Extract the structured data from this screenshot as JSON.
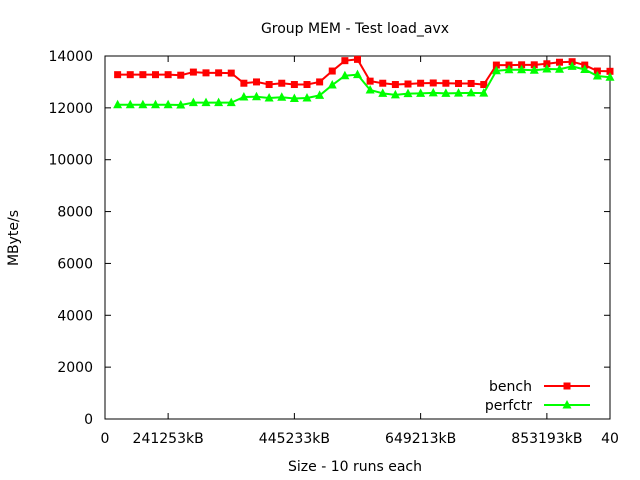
{
  "chart_data": {
    "type": "line",
    "title": "Group MEM - Test load_avx",
    "xlabel": "Size - 10 runs each",
    "ylabel": "MByte/s",
    "xlim": [
      0,
      40
    ],
    "ylim": [
      0,
      14000
    ],
    "x_ticks": [
      {
        "value": 0,
        "label": "0"
      },
      {
        "value": 5,
        "label": "241253kB"
      },
      {
        "value": 15,
        "label": "445233kB"
      },
      {
        "value": 25,
        "label": "649213kB"
      },
      {
        "value": 35,
        "label": "853193kB"
      },
      {
        "value": 40,
        "label": "40"
      }
    ],
    "y_ticks": [
      0,
      2000,
      4000,
      6000,
      8000,
      10000,
      12000,
      14000
    ],
    "grid": false,
    "legend_position": "bottom-right",
    "x": [
      1,
      2,
      3,
      4,
      5,
      6,
      7,
      8,
      9,
      10,
      11,
      12,
      13,
      14,
      15,
      16,
      17,
      18,
      19,
      20,
      21,
      22,
      23,
      24,
      25,
      26,
      27,
      28,
      29,
      30,
      31,
      32,
      33,
      34,
      35,
      36,
      37,
      38,
      39,
      40
    ],
    "series": [
      {
        "name": "bench",
        "color": "#ff0000",
        "marker": "square",
        "values": [
          13280,
          13280,
          13280,
          13280,
          13280,
          13260,
          13380,
          13350,
          13350,
          13340,
          12950,
          13000,
          12900,
          12950,
          12900,
          12900,
          13000,
          13420,
          13820,
          13870,
          13030,
          12950,
          12900,
          12920,
          12950,
          12960,
          12950,
          12940,
          12940,
          12900,
          13650,
          13650,
          13660,
          13660,
          13700,
          13760,
          13780,
          13650,
          13420,
          13410
        ]
      },
      {
        "name": "perfctr",
        "color": "#00ff00",
        "marker": "triangle",
        "values": [
          12120,
          12120,
          12120,
          12120,
          12120,
          12110,
          12200,
          12200,
          12200,
          12200,
          12420,
          12430,
          12380,
          12410,
          12360,
          12380,
          12480,
          12880,
          13240,
          13280,
          12690,
          12560,
          12500,
          12550,
          12560,
          12580,
          12560,
          12570,
          12580,
          12570,
          13430,
          13470,
          13470,
          13450,
          13500,
          13490,
          13600,
          13480,
          13230,
          13180
        ]
      }
    ]
  }
}
